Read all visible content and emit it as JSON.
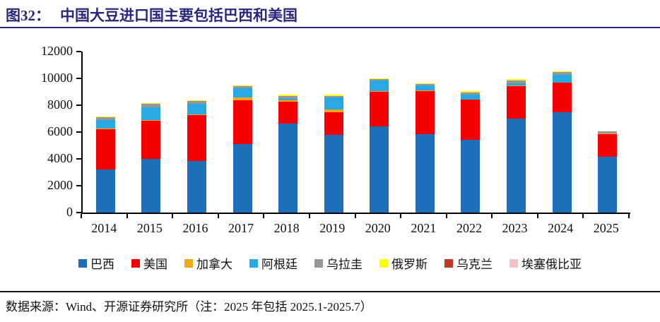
{
  "header": {
    "figure_label": "图32：",
    "title": "中国大豆进口国主要包括巴西和美国"
  },
  "footer": {
    "source": "数据来源：Wind、开源证券研究所（注：2025 年包括 2025.1-2025.7）"
  },
  "chart_data": {
    "type": "bar",
    "stacked": true,
    "grid": false,
    "legend_position": "bottom",
    "title": "中国大豆进口国主要包括巴西和美国",
    "xlabel": "",
    "ylabel": "",
    "ylim": [
      0,
      12000
    ],
    "yticks": [
      0,
      2000,
      4000,
      6000,
      8000,
      10000,
      12000
    ],
    "categories": [
      "2014",
      "2015",
      "2016",
      "2017",
      "2018",
      "2019",
      "2020",
      "2021",
      "2022",
      "2023",
      "2024",
      "2025"
    ],
    "series": [
      {
        "id": "brazil",
        "name": "巴西",
        "color": "#1F6FB8",
        "values": [
          3200,
          4010,
          3820,
          5090,
          6610,
          5770,
          6430,
          5820,
          5440,
          7000,
          7460,
          4150
        ]
      },
      {
        "id": "usa",
        "name": "美国",
        "color": "#F40000",
        "values": [
          3000,
          2840,
          3420,
          3290,
          1660,
          1690,
          2590,
          3230,
          2960,
          2420,
          2210,
          1700
        ]
      },
      {
        "id": "canada",
        "name": "加拿大",
        "color": "#F2A71E",
        "values": [
          50,
          60,
          60,
          200,
          80,
          220,
          60,
          50,
          40,
          30,
          40,
          40
        ]
      },
      {
        "id": "argentina",
        "name": "阿根廷",
        "color": "#29A9E1",
        "values": [
          640,
          950,
          800,
          660,
          150,
          880,
          750,
          380,
          330,
          200,
          580,
          30
        ]
      },
      {
        "id": "uruguay",
        "name": "乌拉圭",
        "color": "#969696",
        "values": [
          230,
          260,
          230,
          180,
          180,
          150,
          100,
          100,
          190,
          180,
          180,
          130
        ]
      },
      {
        "id": "russia",
        "name": "俄罗斯",
        "color": "#FFFF00",
        "values": [
          20,
          50,
          60,
          80,
          100,
          80,
          90,
          70,
          80,
          110,
          60,
          30
        ]
      },
      {
        "id": "ukraine",
        "name": "乌克兰",
        "color": "#BE3A26",
        "values": [
          0,
          0,
          0,
          0,
          0,
          0,
          0,
          0,
          20,
          0,
          0,
          0
        ]
      },
      {
        "id": "ethiopia",
        "name": "埃塞俄比亚",
        "color": "#EFC3C5",
        "values": [
          0,
          0,
          0,
          0,
          0,
          0,
          0,
          0,
          0,
          0,
          0,
          0
        ]
      }
    ],
    "totals_note": {
      "2014": 7140,
      "2015": 8170,
      "2016": 8390,
      "2017": 9500,
      "2018": 8780,
      "2019": 8790,
      "2020": 10020,
      "2021": 9650,
      "2022": 9060,
      "2023": 9940,
      "2024": 10530,
      "2025": 6080
    }
  }
}
